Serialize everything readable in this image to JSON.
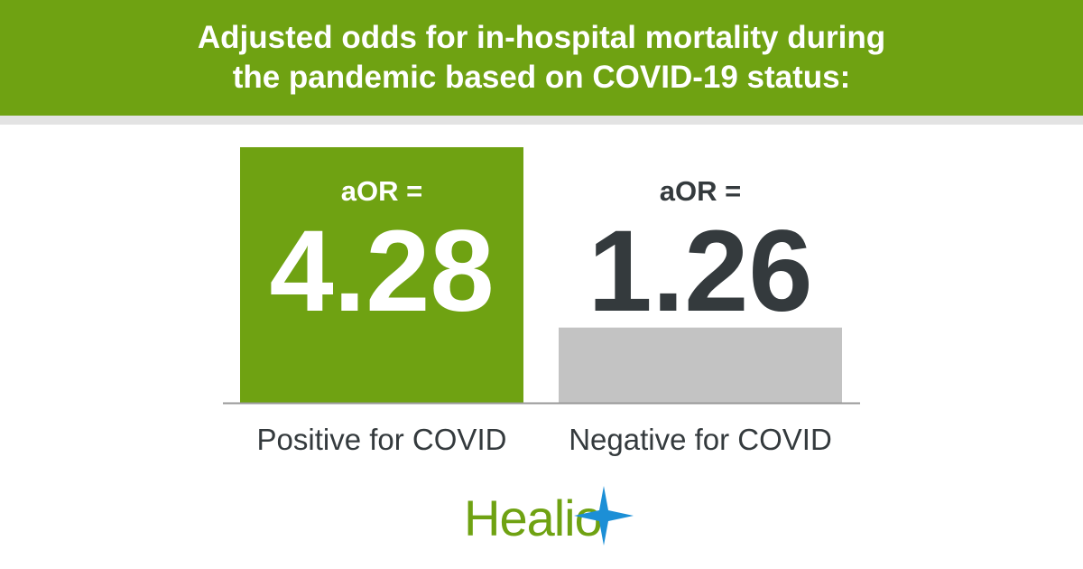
{
  "header": {
    "title_line1": "Adjusted odds for in-hospital mortality during",
    "title_line2": "the pandemic based on COVID-19 status:"
  },
  "chart_data": {
    "type": "bar",
    "categories": [
      "Positive for COVID",
      "Negative for COVID"
    ],
    "values": [
      4.28,
      1.26
    ],
    "value_prefix": "aOR =",
    "ylim": [
      0,
      4.28
    ],
    "colors": [
      "#6fa212",
      "#c3c3c3"
    ],
    "label_colors": [
      "#ffffff",
      "#343a3d"
    ],
    "grid": false
  },
  "logo": {
    "text": "Healio",
    "color": "#6fa212",
    "star_color": "#1c8fd6",
    "icon": "star-icon"
  }
}
